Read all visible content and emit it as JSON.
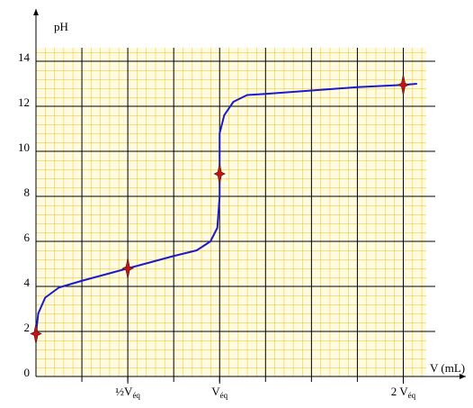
{
  "chart_data": {
    "type": "line",
    "y_label": "pH",
    "x_label": "V (mL)",
    "xlim": [
      0,
      8.5
    ],
    "ylim": [
      0,
      14.6
    ],
    "yticks": [
      0,
      2,
      4,
      6,
      8,
      10,
      12,
      14
    ],
    "xticks": [
      {
        "value": 2,
        "label": "½V",
        "subscript": "éq"
      },
      {
        "value": 4,
        "label": "V",
        "subscript": "éq"
      },
      {
        "value": 8,
        "label": "2 V",
        "subscript": "éq"
      }
    ],
    "xgrid": [
      1,
      2,
      3,
      4,
      5,
      6,
      7,
      8
    ],
    "grid": true,
    "series": [
      {
        "color": "#1a1acc",
        "x": [
          0,
          0.05,
          0.2,
          0.5,
          1,
          2,
          3,
          3.5,
          3.8,
          3.95,
          4.0,
          4.0,
          4.1,
          4.3,
          4.6,
          5,
          6,
          7,
          8,
          8.3
        ],
        "values": [
          1.9,
          2.8,
          3.5,
          3.95,
          4.25,
          4.8,
          5.35,
          5.6,
          6.0,
          6.6,
          8.0,
          10.8,
          11.6,
          12.2,
          12.5,
          12.55,
          12.7,
          12.85,
          12.95,
          13.0
        ]
      }
    ],
    "points": {
      "color": "#cc1111",
      "x": [
        0,
        2,
        4,
        8
      ],
      "values": [
        1.9,
        4.8,
        9.0,
        12.95
      ]
    }
  }
}
